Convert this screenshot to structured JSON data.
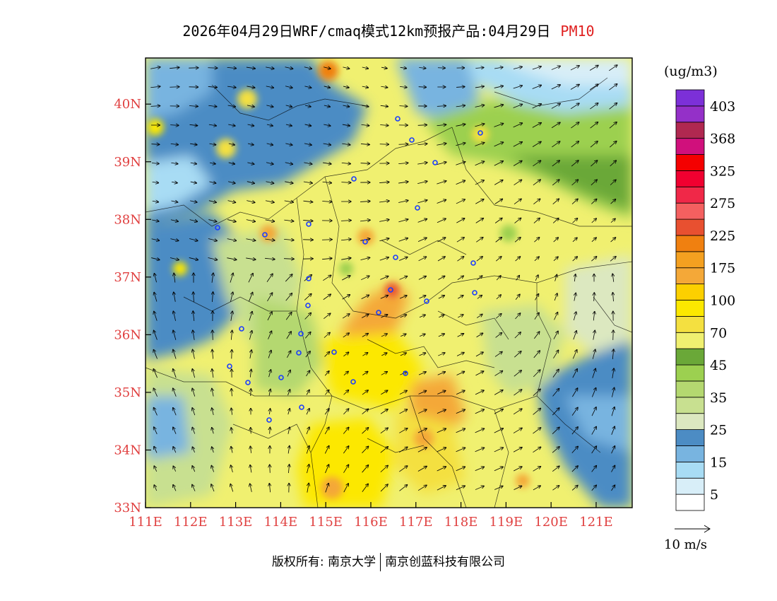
{
  "title": {
    "main": "2026年04月29日WRF/cmaq模式12km预报产品:04月29日",
    "variable": "PM10"
  },
  "colorbar": {
    "unit": "(ug/m3)",
    "colors": [
      "#ffffff",
      "#d8eef8",
      "#a8dcf4",
      "#78b4e0",
      "#4c8cc4",
      "#dce8c0",
      "#c8e090",
      "#b4d870",
      "#9cd050",
      "#6aa838",
      "#f0f070",
      "#f4e040",
      "#fce800",
      "#fcd000",
      "#f4a838",
      "#f4a020",
      "#f08010",
      "#e85030",
      "#f46060",
      "#f02848",
      "#f00030",
      "#f40000",
      "#d0107c",
      "#b02850",
      "#9430c8",
      "#7c30d8"
    ],
    "labels": [
      {
        "text": "5",
        "after": 1
      },
      {
        "text": "15",
        "after": 3
      },
      {
        "text": "25",
        "after": 5
      },
      {
        "text": "35",
        "after": 7
      },
      {
        "text": "45",
        "after": 9
      },
      {
        "text": "70",
        "after": 11
      },
      {
        "text": "100",
        "after": 13
      },
      {
        "text": "175",
        "after": 15
      },
      {
        "text": "225",
        "after": 17
      },
      {
        "text": "275",
        "after": 19
      },
      {
        "text": "325",
        "after": 21
      },
      {
        "text": "368",
        "after": 23
      },
      {
        "text": "403",
        "after": 25
      }
    ]
  },
  "axes": {
    "x_labels": [
      "111E",
      "112E",
      "113E",
      "114E",
      "115E",
      "116E",
      "117E",
      "118E",
      "119E",
      "120E",
      "121E"
    ],
    "y_labels": [
      "33N",
      "34N",
      "35N",
      "36N",
      "37N",
      "38N",
      "39N",
      "40N"
    ],
    "lon_range": [
      111,
      121.8
    ],
    "lat_range": [
      33,
      40.8
    ]
  },
  "wind_reference": {
    "label": "10 m/s"
  },
  "footer": {
    "left": "版权所有: 南京大学",
    "right": "南京创蓝科技有限公司"
  },
  "colors": {
    "axis_label": "#e04040",
    "title_variable": "#e02020"
  }
}
